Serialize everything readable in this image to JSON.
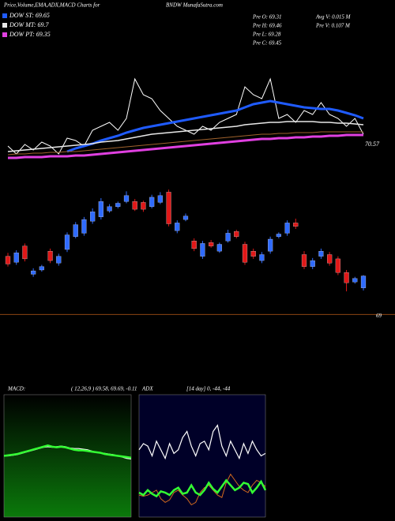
{
  "header": {
    "title": "Price,Volume,EMA,ADX,MACD Charts for",
    "symbol": "BNDW MunafaSutra.com"
  },
  "info": {
    "left": [
      "Pre O: 69.31",
      "Pre H: 69.46",
      "Pre L: 69.28",
      "Pre C: 69.45"
    ],
    "right": [
      "Avg V: 0.015 M",
      "Pre V: 0.107 M"
    ]
  },
  "chart_data": [
    {
      "type": "line",
      "ylim": [
        70.4,
        71.8
      ],
      "yticks": [
        70.57
      ],
      "grid": false,
      "series": [
        {
          "color": "#ffffff",
          "width": 1,
          "values": [
            70.55,
            70.45,
            70.57,
            70.5,
            70.6,
            70.55,
            70.45,
            70.65,
            70.62,
            70.55,
            70.75,
            70.8,
            70.85,
            70.75,
            70.9,
            71.4,
            71.2,
            71.15,
            71.0,
            70.9,
            70.8,
            70.75,
            70.7,
            70.8,
            70.75,
            70.85,
            70.9,
            70.95,
            71.3,
            71.2,
            71.15,
            71.4,
            70.9,
            70.95,
            70.85,
            71.0,
            70.95,
            71.1,
            70.95,
            70.9,
            70.8,
            70.9,
            70.7
          ]
        },
        {
          "name": "DOW ST: 69.65",
          "color": "#1f5bff",
          "width": 3,
          "values": [
            null,
            null,
            null,
            null,
            null,
            null,
            null,
            70.48,
            70.52,
            70.55,
            70.58,
            70.62,
            70.65,
            70.68,
            70.72,
            70.75,
            70.78,
            70.8,
            70.82,
            70.84,
            70.86,
            70.88,
            70.9,
            70.92,
            70.94,
            70.96,
            70.98,
            71.0,
            71.04,
            71.08,
            71.1,
            71.12,
            71.1,
            71.08,
            71.06,
            71.04,
            71.03,
            71.02,
            71.02,
            71.0,
            70.97,
            70.94,
            70.9
          ]
        },
        {
          "name": "DOW MT: 69.7",
          "color": "#e8e8e8",
          "width": 1.5,
          "values": [
            70.48,
            70.49,
            70.5,
            70.51,
            70.52,
            70.53,
            70.54,
            70.55,
            70.56,
            70.57,
            70.58,
            70.6,
            70.61,
            70.62,
            70.64,
            70.66,
            70.68,
            70.7,
            70.71,
            70.72,
            70.73,
            70.74,
            70.75,
            70.76,
            70.77,
            70.78,
            70.79,
            70.8,
            70.82,
            70.83,
            70.84,
            70.85,
            70.85,
            70.86,
            70.86,
            70.86,
            70.86,
            70.85,
            70.85,
            70.84,
            70.84,
            70.83,
            70.82
          ]
        },
        {
          "color": "#a0622d",
          "width": 1,
          "values": [
            70.44,
            70.45,
            70.45,
            70.46,
            70.46,
            70.47,
            70.47,
            70.48,
            70.48,
            70.49,
            70.5,
            70.51,
            70.52,
            70.53,
            70.54,
            70.55,
            70.56,
            70.57,
            70.58,
            70.59,
            70.6,
            70.61,
            70.62,
            70.63,
            70.64,
            70.65,
            70.66,
            70.67,
            70.68,
            70.69,
            70.7,
            70.7,
            70.71,
            70.71,
            70.72,
            70.72,
            70.72,
            70.73,
            70.73,
            70.73,
            70.73,
            70.73,
            70.73
          ]
        },
        {
          "name": "DOW PT: 69.35",
          "color": "#e040e0",
          "width": 3,
          "values": [
            70.4,
            70.4,
            70.41,
            70.41,
            70.41,
            70.42,
            70.42,
            70.42,
            70.43,
            70.43,
            70.44,
            70.45,
            70.46,
            70.47,
            70.48,
            70.49,
            70.5,
            70.51,
            70.52,
            70.53,
            70.54,
            70.55,
            70.56,
            70.57,
            70.58,
            70.59,
            70.6,
            70.61,
            70.62,
            70.63,
            70.64,
            70.64,
            70.65,
            70.65,
            70.66,
            70.66,
            70.67,
            70.67,
            70.68,
            70.68,
            70.69,
            70.69,
            70.69
          ]
        }
      ]
    },
    {
      "type": "candlestick",
      "ylim": [
        68.8,
        70.6
      ],
      "yticks": [
        69
      ],
      "grid": true,
      "grid_color": "#8b4513",
      "up_color": "#2f6bff",
      "down_color": "#e01818",
      "open": [
        69.68,
        69.61,
        69.8,
        69.47,
        69.52,
        69.74,
        69.6,
        69.76,
        69.91,
        69.95,
        70.09,
        70.14,
        70.21,
        70.26,
        70.32,
        70.32,
        70.31,
        70.26,
        70.31,
        70.43,
        69.98,
        70.11,
        69.86,
        69.68,
        69.84,
        69.74,
        69.86,
        69.97,
        69.82,
        69.74,
        69.63,
        69.74,
        69.91,
        69.95,
        70.07,
        69.7,
        69.56,
        69.68,
        69.7,
        69.65,
        69.49,
        69.38,
        69.31
      ],
      "high": [
        69.72,
        69.75,
        69.83,
        69.54,
        69.58,
        69.77,
        69.71,
        69.96,
        70.08,
        70.14,
        70.24,
        70.36,
        70.29,
        70.32,
        70.44,
        70.35,
        70.33,
        70.4,
        70.43,
        70.46,
        70.1,
        70.18,
        69.89,
        69.86,
        69.87,
        69.84,
        69.99,
        69.99,
        69.85,
        69.77,
        69.73,
        69.91,
        69.96,
        70.1,
        70.12,
        69.74,
        69.66,
        69.77,
        69.73,
        69.68,
        69.52,
        69.44,
        69.46
      ],
      "low": [
        69.56,
        69.58,
        69.62,
        69.44,
        69.5,
        69.6,
        69.57,
        69.73,
        69.89,
        69.92,
        70.06,
        70.11,
        70.19,
        70.24,
        70.3,
        70.21,
        70.2,
        70.24,
        70.29,
        70.03,
        69.95,
        70.09,
        69.74,
        69.65,
        69.78,
        69.72,
        69.84,
        69.89,
        69.58,
        69.65,
        69.6,
        69.71,
        69.89,
        69.92,
        70.0,
        69.53,
        69.53,
        69.65,
        69.57,
        69.46,
        69.27,
        69.36,
        69.28
      ],
      "close": [
        69.59,
        69.72,
        69.65,
        69.51,
        69.56,
        69.63,
        69.68,
        69.93,
        70.05,
        70.11,
        70.2,
        70.32,
        70.26,
        70.3,
        70.39,
        70.23,
        70.23,
        70.37,
        70.39,
        70.06,
        70.07,
        70.15,
        69.77,
        69.83,
        69.8,
        69.82,
        69.95,
        69.91,
        69.61,
        69.68,
        69.7,
        69.88,
        69.94,
        70.07,
        70.03,
        69.56,
        69.63,
        69.74,
        69.6,
        69.49,
        69.37,
        69.42,
        69.45
      ]
    },
    {
      "type": "line",
      "title": "MACD:",
      "subtitle": "( 12,26,9 ) 69.58, 69.69, -0.11",
      "ylim": [
        -1,
        1
      ],
      "series": [
        {
          "color": "#ffffff",
          "width": 1.2,
          "values": [
            0,
            0,
            0.01,
            0.02,
            0.04,
            0.06,
            0.08,
            0.1,
            0.12,
            0.14,
            0.15,
            0.14,
            0.15,
            0.16,
            0.15,
            0.13,
            0.12,
            0.12,
            0.11,
            0.1,
            0.08,
            0.06,
            0.05,
            0.04,
            0.03,
            0.02,
            0.0,
            -0.02,
            -0.04,
            -0.05
          ]
        },
        {
          "color": "#33ff33",
          "width": 2.5,
          "values": [
            0,
            0.01,
            0.02,
            0.03,
            0.05,
            0.07,
            0.09,
            0.11,
            0.13,
            0.15,
            0.17,
            0.15,
            0.14,
            0.15,
            0.14,
            0.12,
            0.1,
            0.09,
            0.09,
            0.08,
            0.07,
            0.06,
            0.05,
            0.03,
            0.02,
            0.01,
            0.0,
            -0.01,
            -0.02,
            -0.03
          ]
        }
      ]
    },
    {
      "type": "line",
      "title": "ADX",
      "subtitle": "[14 day] 0, -44, -44",
      "ylim": [
        0,
        100
      ],
      "series": [
        {
          "color": "#ffffff",
          "width": 1.2,
          "values": [
            55,
            60,
            58,
            50,
            62,
            55,
            48,
            60,
            52,
            55,
            65,
            70,
            58,
            50,
            60,
            62,
            55,
            70,
            75,
            58,
            50,
            62,
            55,
            48,
            60,
            52,
            62,
            55,
            50,
            52
          ]
        },
        {
          "color": "#d2691e",
          "width": 1,
          "values": [
            18,
            17,
            18,
            20,
            22,
            15,
            12,
            14,
            20,
            22,
            18,
            15,
            10,
            12,
            20,
            24,
            26,
            22,
            18,
            16,
            28,
            35,
            30,
            25,
            22,
            20,
            26,
            30,
            28,
            25
          ]
        },
        {
          "color": "#33ff33",
          "width": 2.5,
          "values": [
            20,
            18,
            22,
            19,
            17,
            21,
            20,
            18,
            22,
            24,
            19,
            20,
            26,
            20,
            18,
            22,
            28,
            23,
            20,
            25,
            30,
            26,
            22,
            24,
            28,
            27,
            20,
            24,
            29,
            22
          ]
        }
      ]
    }
  ]
}
